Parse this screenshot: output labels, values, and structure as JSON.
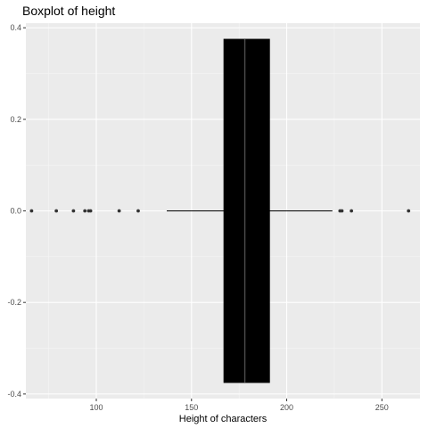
{
  "chart_data": {
    "type": "boxplot",
    "title": "Boxplot of height",
    "xlabel": "Height of characters",
    "ylabel": "",
    "xlim": [
      63,
      270
    ],
    "ylim": [
      -0.41,
      0.41
    ],
    "x_ticks": [
      100,
      150,
      200,
      250
    ],
    "x_tick_labels": [
      "100",
      "150",
      "200",
      "250"
    ],
    "y_ticks": [
      -0.4,
      -0.2,
      0.0,
      0.2,
      0.4
    ],
    "y_tick_labels": [
      "-0.4",
      "-0.2",
      "0.0",
      "0.2",
      "0.4"
    ],
    "grid": true,
    "box": {
      "min": 137,
      "q1": 167,
      "median": 178,
      "q3": 191,
      "max": 224,
      "y_center": 0.0,
      "half_width": 0.375
    },
    "outliers": [
      66,
      79,
      88,
      94,
      96,
      97,
      112,
      122,
      228,
      229,
      234,
      264
    ],
    "colors": {
      "panel": "#ebebeb",
      "grid_major": "#ffffff",
      "grid_minor": "#f5f5f5",
      "box_fill": "#000000",
      "median_line": "#4d4d4d",
      "whisker": "#000000",
      "outlier": "#333333"
    }
  }
}
